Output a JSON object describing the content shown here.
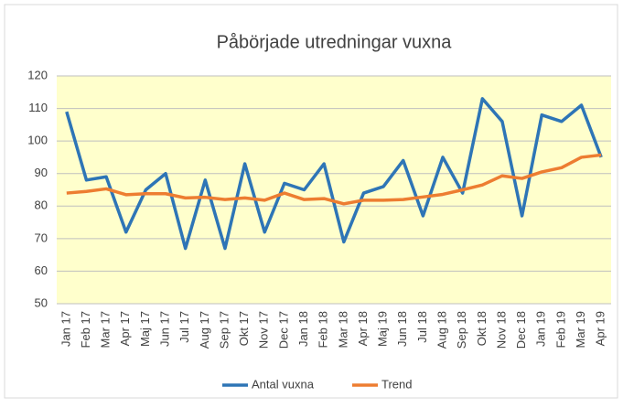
{
  "chart_data": {
    "type": "line",
    "title": "Påbörjade utredningar vuxna",
    "categories": [
      "Jan 17",
      "Feb 17",
      "Mar 17",
      "Apr 17",
      "Maj 17",
      "Jun 17",
      "Jul 17",
      "Aug 17",
      "Sep 17",
      "Okt 17",
      "Nov 17",
      "Dec 17",
      "Jan 18",
      "Feb 18",
      "Mar 18",
      "Apr 18",
      "Maj 19",
      "Jun 18",
      "Jul 18",
      "Aug 18",
      "Sep 18",
      "Okt 18",
      "Nov 18",
      "Dec 18",
      "Jan 19",
      "Feb 19",
      "Mar 19",
      "Apr 19"
    ],
    "series": [
      {
        "name": "Antal vuxna",
        "color": "#2e75b6",
        "values": [
          109,
          88,
          89,
          72,
          85,
          90,
          67,
          88,
          67,
          93,
          72,
          87,
          85,
          93,
          69,
          84,
          86,
          94,
          77,
          95,
          84,
          113,
          106,
          77,
          108,
          106,
          111,
          95
        ]
      },
      {
        "name": "Trend",
        "color": "#ed7d31",
        "values": [
          84,
          84.5,
          85.3,
          83.5,
          83.8,
          83.8,
          82.5,
          82.7,
          82,
          82.5,
          81.8,
          84,
          82,
          82.3,
          80.7,
          81.8,
          81.8,
          82,
          82.8,
          83.6,
          85,
          86.5,
          89.3,
          88.5,
          90.5,
          91.8,
          95,
          95.7
        ]
      }
    ],
    "ylim": [
      50,
      120
    ],
    "yticks": [
      50,
      60,
      70,
      80,
      90,
      100,
      110,
      120
    ],
    "grid": true,
    "legend": "bottom"
  }
}
